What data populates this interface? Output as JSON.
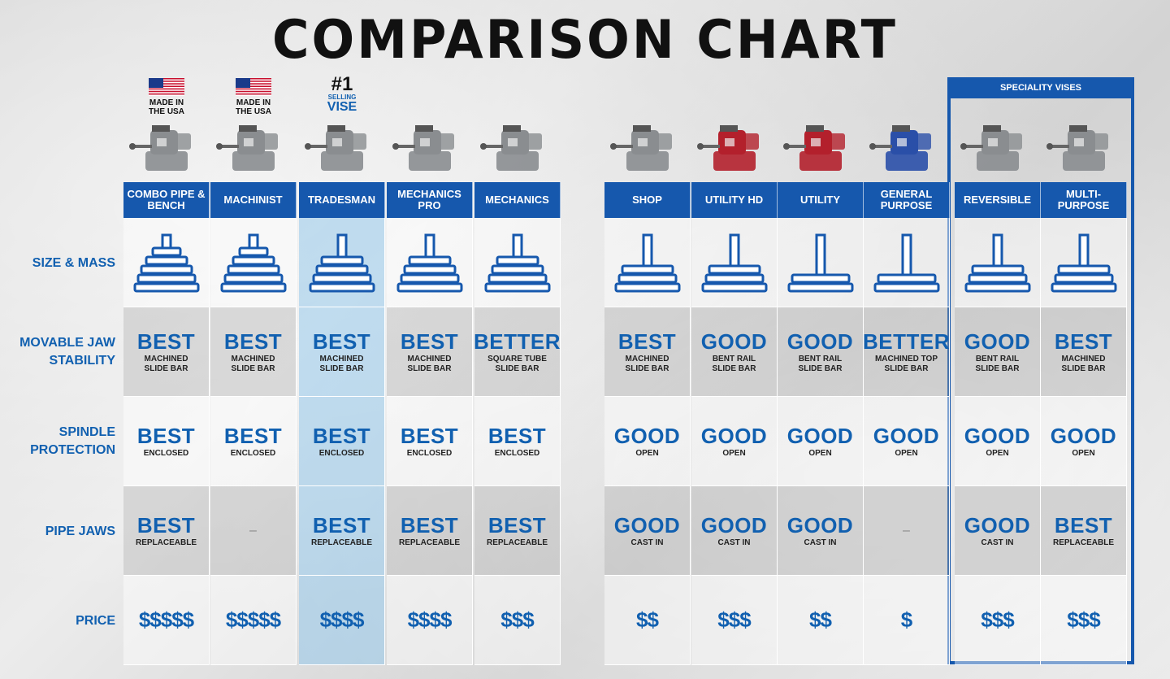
{
  "title": "COMPARISON CHART",
  "speciality_title": "SPECIALITY VISES",
  "badges": {
    "made_in_usa": "MADE IN THE USA",
    "number_one": "#1",
    "selling": "SELLING",
    "vise": "VISE"
  },
  "row_labels": [
    "SIZE & MASS",
    "MOVABLE JAW STABILITY",
    "SPINDLE PROTECTION",
    "PIPE JAWS",
    "PRICE"
  ],
  "colors": {
    "accent": "#1658ad",
    "rating_text": "#1160b0",
    "highlight": "#a6d3ee",
    "red_vise": "#b3202c",
    "blue_vise": "#2a4fa8",
    "gray_vise": "#8a8d90"
  },
  "chart_data": {
    "type": "table",
    "title": "COMPARISON CHART",
    "columns": [
      {
        "name": "COMBO PIPE & BENCH",
        "badge": "MADE IN THE USA",
        "vise_color": "gray",
        "size_mass_level": 5,
        "jaw_stability": "BEST",
        "jaw_note": "MACHINED SLIDE BAR",
        "spindle": "BEST",
        "spindle_note": "ENCLOSED",
        "pipe_jaws": "BEST",
        "pipe_note": "REPLACEABLE",
        "price": "$$$$$",
        "price_level": 5
      },
      {
        "name": "MACHINIST",
        "badge": "MADE IN THE USA",
        "vise_color": "gray",
        "size_mass_level": 5,
        "jaw_stability": "BEST",
        "jaw_note": "MACHINED SLIDE BAR",
        "spindle": "BEST",
        "spindle_note": "ENCLOSED",
        "pipe_jaws": "–",
        "pipe_note": "",
        "price": "$$$$$",
        "price_level": 5
      },
      {
        "name": "TRADESMAN",
        "badge": "#1 SELLING VISE",
        "vise_color": "gray",
        "size_mass_level": 4,
        "jaw_stability": "BEST",
        "jaw_note": "MACHINED SLIDE BAR",
        "spindle": "BEST",
        "spindle_note": "ENCLOSED",
        "pipe_jaws": "BEST",
        "pipe_note": "REPLACEABLE",
        "price": "$$$$",
        "price_level": 4,
        "highlight": true
      },
      {
        "name": "MECHANICS PRO",
        "badge": "",
        "vise_color": "gray",
        "size_mass_level": 4,
        "jaw_stability": "BEST",
        "jaw_note": "MACHINED SLIDE BAR",
        "spindle": "BEST",
        "spindle_note": "ENCLOSED",
        "pipe_jaws": "BEST",
        "pipe_note": "REPLACEABLE",
        "price": "$$$$",
        "price_level": 4
      },
      {
        "name": "MECHANICS",
        "badge": "",
        "vise_color": "gray",
        "size_mass_level": 4,
        "jaw_stability": "BETTER",
        "jaw_note": "SQUARE TUBE SLIDE BAR",
        "spindle": "BEST",
        "spindle_note": "ENCLOSED",
        "pipe_jaws": "BEST",
        "pipe_note": "REPLACEABLE",
        "price": "$$$",
        "price_level": 3
      },
      {
        "name": "SHOP",
        "badge": "",
        "vise_color": "gray",
        "size_mass_level": 3,
        "jaw_stability": "BEST",
        "jaw_note": "MACHINED SLIDE BAR",
        "spindle": "GOOD",
        "spindle_note": "OPEN",
        "pipe_jaws": "GOOD",
        "pipe_note": "CAST IN",
        "price": "$$",
        "price_level": 2
      },
      {
        "name": "UTILITY HD",
        "badge": "",
        "vise_color": "red",
        "size_mass_level": 3,
        "jaw_stability": "GOOD",
        "jaw_note": "BENT RAIL SLIDE BAR",
        "spindle": "GOOD",
        "spindle_note": "OPEN",
        "pipe_jaws": "GOOD",
        "pipe_note": "CAST IN",
        "price": "$$$",
        "price_level": 3
      },
      {
        "name": "UTILITY",
        "badge": "",
        "vise_color": "red",
        "size_mass_level": 2,
        "jaw_stability": "GOOD",
        "jaw_note": "BENT RAIL SLIDE BAR",
        "spindle": "GOOD",
        "spindle_note": "OPEN",
        "pipe_jaws": "GOOD",
        "pipe_note": "CAST IN",
        "price": "$$",
        "price_level": 2
      },
      {
        "name": "GENERAL PURPOSE",
        "badge": "",
        "vise_color": "blue",
        "size_mass_level": 2,
        "jaw_stability": "BETTER",
        "jaw_note": "MACHINED TOP SLIDE BAR",
        "spindle": "GOOD",
        "spindle_note": "OPEN",
        "pipe_jaws": "–",
        "pipe_note": "",
        "price": "$",
        "price_level": 1
      },
      {
        "name": "REVERSIBLE",
        "badge": "",
        "vise_color": "gray",
        "size_mass_level": 3,
        "jaw_stability": "GOOD",
        "jaw_note": "BENT RAIL SLIDE BAR",
        "spindle": "GOOD",
        "spindle_note": "OPEN",
        "pipe_jaws": "GOOD",
        "pipe_note": "CAST IN",
        "price": "$$$",
        "price_level": 3,
        "speciality": true
      },
      {
        "name": "MULTI-PURPOSE",
        "badge": "",
        "vise_color": "gray",
        "size_mass_level": 3,
        "jaw_stability": "BEST",
        "jaw_note": "MACHINED SLIDE BAR",
        "spindle": "GOOD",
        "spindle_note": "OPEN",
        "pipe_jaws": "BEST",
        "pipe_note": "REPLACEABLE",
        "price": "$$$",
        "price_level": 3,
        "speciality": true
      }
    ]
  }
}
